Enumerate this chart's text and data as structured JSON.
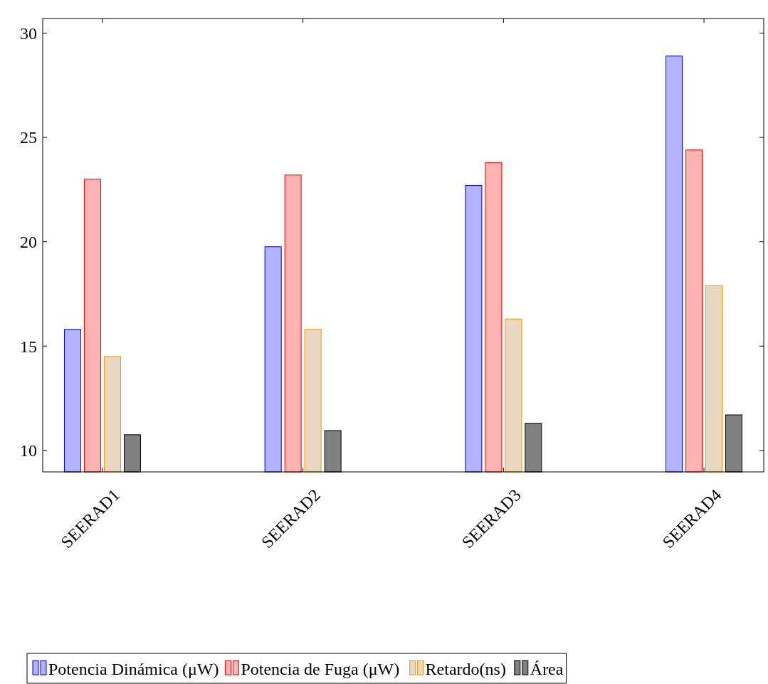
{
  "chart_data": {
    "type": "bar",
    "categories": [
      "SEERAD1",
      "SEERAD2",
      "SEERAD3",
      "SEERAD4"
    ],
    "series": [
      {
        "name": "Potencia Dinámica (μW)",
        "color": "#b3b3ff",
        "values": [
          15.8,
          19.76,
          22.7,
          28.9
        ]
      },
      {
        "name": "Potencia de Fuga (μW)",
        "color": "#ffb3b3",
        "values": [
          23.0,
          23.2,
          23.8,
          24.4
        ]
      },
      {
        "name": "Retardo(ns)",
        "color": "#e9d8c1",
        "values": [
          14.5,
          15.8,
          16.3,
          17.9
        ]
      },
      {
        "name": "Área",
        "color": "#808080",
        "values": [
          10.75,
          10.95,
          11.3,
          11.7
        ]
      }
    ],
    "ylim": [
      8.97,
      30.7
    ],
    "yticks": [
      10,
      15,
      20,
      25,
      30
    ],
    "grid": false,
    "legend": "bottom"
  }
}
